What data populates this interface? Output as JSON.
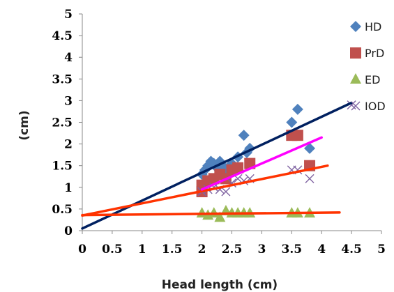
{
  "chart_data": {
    "type": "scatter",
    "xlabel": "Head length (cm)",
    "ylabel": "(cm)",
    "xlim": [
      0,
      5
    ],
    "ylim": [
      0,
      5
    ],
    "xticks": [
      "0",
      "0.5",
      "1",
      "1.5",
      "2",
      "2.5",
      "3",
      "3.5",
      "4",
      "4.5",
      "5"
    ],
    "yticks": [
      "0",
      "0.5",
      "1",
      "1.5",
      "2",
      "2.5",
      "3",
      "3.5",
      "4",
      "4.5",
      "5"
    ],
    "grid": false,
    "legend": "right",
    "series": [
      {
        "name": "HD",
        "marker": "diamond",
        "color": "#4f81bd",
        "points": [
          [
            2.0,
            1.3
          ],
          [
            2.05,
            1.4
          ],
          [
            2.1,
            1.5
          ],
          [
            2.15,
            1.6
          ],
          [
            2.2,
            1.55
          ],
          [
            2.25,
            1.45
          ],
          [
            2.3,
            1.6
          ],
          [
            2.35,
            1.5
          ],
          [
            2.4,
            1.4
          ],
          [
            2.5,
            1.55
          ],
          [
            2.6,
            1.7
          ],
          [
            2.7,
            2.2
          ],
          [
            2.75,
            1.8
          ],
          [
            2.8,
            1.9
          ],
          [
            3.5,
            2.5
          ],
          [
            3.6,
            2.8
          ],
          [
            3.8,
            1.9
          ]
        ],
        "trend": {
          "x": [
            0,
            4.5
          ],
          "y": [
            0.05,
            2.95
          ],
          "color": "#002060"
        }
      },
      {
        "name": "PrD",
        "marker": "square",
        "color": "#c0504d",
        "points": [
          [
            2.0,
            0.9
          ],
          [
            2.0,
            1.05
          ],
          [
            2.1,
            1.15
          ],
          [
            2.2,
            1.2
          ],
          [
            2.3,
            1.3
          ],
          [
            2.4,
            1.2
          ],
          [
            2.5,
            1.4
          ],
          [
            2.6,
            1.45
          ],
          [
            2.8,
            1.55
          ],
          [
            3.5,
            2.2
          ],
          [
            3.6,
            2.2
          ],
          [
            3.8,
            1.5
          ]
        ],
        "trend": {
          "x": [
            0,
            4.1
          ],
          "y": [
            0.35,
            1.5
          ],
          "color": "#ff3300"
        }
      },
      {
        "name": "ED",
        "marker": "triangle",
        "color": "#9bbb59",
        "points": [
          [
            2.0,
            0.4
          ],
          [
            2.1,
            0.35
          ],
          [
            2.2,
            0.4
          ],
          [
            2.3,
            0.3
          ],
          [
            2.4,
            0.45
          ],
          [
            2.5,
            0.4
          ],
          [
            2.6,
            0.4
          ],
          [
            2.7,
            0.4
          ],
          [
            2.8,
            0.4
          ],
          [
            3.5,
            0.4
          ],
          [
            3.6,
            0.4
          ],
          [
            3.8,
            0.4
          ]
        ],
        "trend": {
          "x": [
            0,
            4.3
          ],
          "y": [
            0.36,
            0.42
          ],
          "color": "#ff3300"
        }
      },
      {
        "name": "IOD",
        "marker": "x",
        "color": "#8064a2",
        "points": [
          [
            2.0,
            0.9
          ],
          [
            2.1,
            0.95
          ],
          [
            2.2,
            1.0
          ],
          [
            2.3,
            0.95
          ],
          [
            2.4,
            0.9
          ],
          [
            2.5,
            1.1
          ],
          [
            2.6,
            1.2
          ],
          [
            2.7,
            1.15
          ],
          [
            2.8,
            1.2
          ],
          [
            3.5,
            1.4
          ],
          [
            3.6,
            1.4
          ],
          [
            3.8,
            1.2
          ],
          [
            4.5,
            2.9
          ]
        ],
        "trend": {
          "x": [
            2.0,
            4.0
          ],
          "y": [
            0.95,
            2.15
          ],
          "color": "#ff00ff"
        }
      }
    ]
  }
}
